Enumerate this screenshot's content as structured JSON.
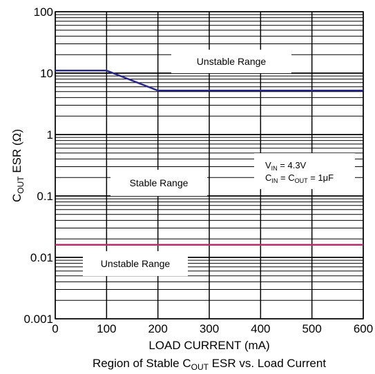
{
  "chart_data": {
    "type": "line",
    "xlabel": "LOAD CURRENT (mA)",
    "ylabel": {
      "main": "C",
      "sub": "OUT",
      "rest": " ESR (Ω)"
    },
    "caption": {
      "pre": "Region of Stable C",
      "sub": "OUT",
      "post": " ESR vs. Load Current"
    },
    "x_ticks": [
      "0",
      "100",
      "200",
      "300",
      "400",
      "500",
      "600"
    ],
    "y_ticks": [
      "0.001",
      "0.01",
      "0.1",
      "1",
      "10",
      "100"
    ],
    "xlim": [
      0,
      600
    ],
    "ylim": [
      0.001,
      100
    ],
    "yscale": "log",
    "grid": true,
    "series": [
      {
        "color": "#2a2a8a",
        "x": [
          0,
          100,
          200,
          600
        ],
        "y": [
          11,
          11,
          5.2,
          5.2
        ]
      },
      {
        "color": "#b0306a",
        "x": [
          0,
          600
        ],
        "y": [
          0.016,
          0.016
        ]
      }
    ],
    "annotations": {
      "unstable_top": "Unstable Range",
      "stable": "Stable Range",
      "unstable_bottom": "Unstable Range",
      "vin": {
        "main": "V",
        "sub": "IN",
        "rest": " = 4.3V"
      },
      "cin": {
        "c1": "C",
        "s1": "IN",
        "mid": " = C",
        "s2": "OUT",
        "rest": " = 1μF"
      }
    }
  }
}
